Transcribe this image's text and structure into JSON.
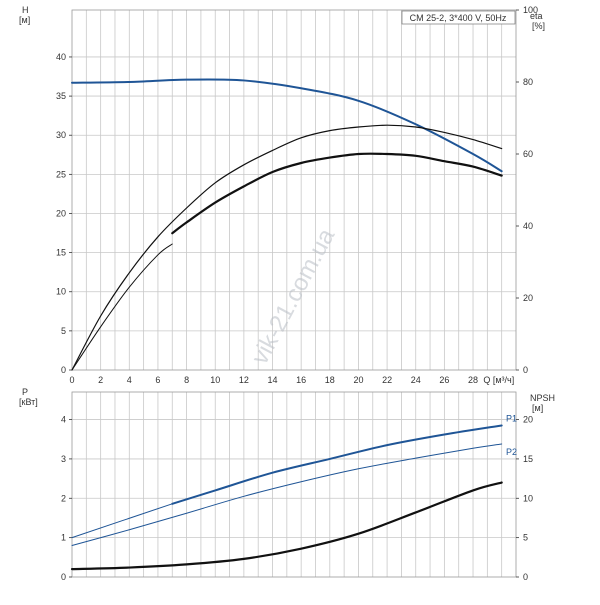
{
  "colors": {
    "blue": "#1f5596",
    "blue_dark": "#0f3f7a",
    "black": "#111111",
    "grid": "#c8c8c8"
  },
  "chart_data": [
    {
      "type": "line",
      "title": "CM 25-2, 3*400 V, 50Hz",
      "x_label": "Q [м³/ч]",
      "xlim": [
        0,
        31
      ],
      "x_ticks": [
        "0",
        "2",
        "4",
        "6",
        "8",
        "10",
        "12",
        "14",
        "16",
        "18",
        "20",
        "22",
        "24",
        "26",
        "28"
      ],
      "left_axis": {
        "label_line1": "H",
        "label_line2": "[м]",
        "ylim": [
          0,
          46
        ],
        "ticks": [
          "0",
          "5",
          "10",
          "15",
          "20",
          "25",
          "30",
          "35",
          "40"
        ]
      },
      "right_axis": {
        "label_line1": "eta",
        "label_line2": "[%]",
        "ylim": [
          0,
          100
        ],
        "ticks": [
          "0",
          "20",
          "40",
          "60",
          "80",
          "100"
        ]
      },
      "grid": true,
      "series": [
        {
          "axis": "left",
          "color": "#1f5596",
          "width": 2,
          "x": [
            0,
            4,
            8,
            12,
            16,
            20,
            24,
            28,
            30
          ],
          "y": [
            36.7,
            36.8,
            37.1,
            37.0,
            36.0,
            34.4,
            31.4,
            27.6,
            25.4
          ]
        },
        {
          "axis": "right",
          "color": "#111111",
          "width": 1.2,
          "x": [
            0,
            2,
            4,
            6,
            8,
            10,
            12,
            14,
            16,
            18,
            20,
            22,
            24,
            26,
            28,
            30
          ],
          "y": [
            0,
            15,
            27,
            37,
            45,
            52,
            57,
            61,
            64.5,
            66.5,
            67.5,
            68,
            67.5,
            66,
            64,
            61.5
          ]
        },
        {
          "axis": "right",
          "color": "#111111",
          "width": 1,
          "x": [
            0,
            2,
            4,
            6,
            7
          ],
          "y": [
            0,
            12,
            23,
            32,
            35
          ]
        },
        {
          "axis": "right",
          "color": "#111111",
          "width": 2.2,
          "x": [
            7,
            8,
            10,
            12,
            14,
            16,
            18,
            20,
            22,
            24,
            26,
            28,
            30
          ],
          "y": [
            38,
            41,
            46.5,
            51,
            55,
            57.5,
            59,
            60,
            60,
            59.5,
            58,
            56.5,
            54
          ]
        }
      ]
    },
    {
      "type": "line",
      "x_label": "",
      "xlim": [
        0,
        31
      ],
      "left_axis": {
        "label_line1": "P",
        "label_line2": "[кВт]",
        "ylim": [
          0,
          4.7
        ],
        "ticks": [
          "0",
          "1",
          "2",
          "3",
          "4"
        ]
      },
      "right_axis": {
        "label_line1": "NPSH",
        "label_line2": "[м]",
        "ylim": [
          0,
          23.5
        ],
        "ticks": [
          "0",
          "5",
          "10",
          "15",
          "20"
        ]
      },
      "grid": true,
      "series": [
        {
          "name": "P1",
          "axis": "left",
          "color": "#1f5596",
          "width": 1,
          "x": [
            0,
            7
          ],
          "y": [
            1.0,
            1.86
          ]
        },
        {
          "name": "P1",
          "axis": "left",
          "color": "#1f5596",
          "width": 2,
          "x": [
            7,
            10,
            14,
            18,
            22,
            26,
            30
          ],
          "y": [
            1.86,
            2.2,
            2.65,
            3.0,
            3.35,
            3.62,
            3.85
          ]
        },
        {
          "name": "P2",
          "axis": "left",
          "color": "#1f5596",
          "width": 1,
          "x": [
            0,
            4,
            8,
            12,
            16,
            20,
            24,
            28,
            30
          ],
          "y": [
            0.8,
            1.2,
            1.62,
            2.05,
            2.42,
            2.75,
            3.02,
            3.27,
            3.38
          ]
        },
        {
          "name": "NPSH",
          "axis": "right",
          "color": "#111111",
          "width": 2.2,
          "x": [
            0,
            4,
            8,
            12,
            16,
            20,
            24,
            28,
            30
          ],
          "y": [
            1.0,
            1.2,
            1.6,
            2.3,
            3.6,
            5.5,
            8.2,
            11.0,
            12.0
          ]
        }
      ],
      "series_labels": [
        {
          "text": "P1",
          "x": 30.3,
          "y": 3.95
        },
        {
          "text": "P2",
          "x": 30.3,
          "y": 3.1
        }
      ]
    }
  ],
  "watermark": "vik-21.com.ua"
}
